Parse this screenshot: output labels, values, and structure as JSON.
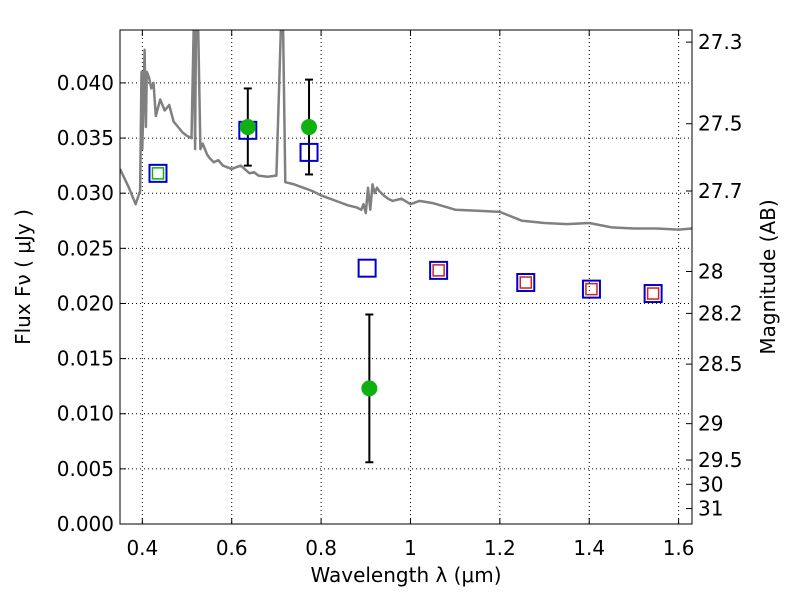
{
  "chart_data": {
    "type": "scatter",
    "title": "",
    "xlabel": "Wavelength  λ (μm)",
    "ylabel": "Flux  Fν  ( μJy )",
    "y2label": "Magnitude (AB)",
    "xlim": [
      0.35,
      1.63
    ],
    "ylim": [
      0.0,
      0.0448
    ],
    "grid": true,
    "x_ticks": [
      0.4,
      0.6,
      0.8,
      1.0,
      1.2,
      1.4,
      1.6
    ],
    "x_tick_labels": [
      "0.4",
      "0.6",
      "0.8",
      "1",
      "1.2",
      "1.4",
      "1.6"
    ],
    "y_ticks": [
      0.0,
      0.005,
      0.01,
      0.015,
      0.02,
      0.025,
      0.03,
      0.035,
      0.04
    ],
    "y_tick_labels": [
      "0.000",
      "0.005",
      "0.010",
      "0.015",
      "0.020",
      "0.025",
      "0.030",
      "0.035",
      "0.040"
    ],
    "y2_ticks": [
      {
        "label": "27.3",
        "flux": 0.0437
      },
      {
        "label": "27.5",
        "flux": 0.0363
      },
      {
        "label": "27.7",
        "flux": 0.0302
      },
      {
        "label": "28",
        "flux": 0.0229
      },
      {
        "label": "28.2",
        "flux": 0.0191
      },
      {
        "label": "28.5",
        "flux": 0.0145
      },
      {
        "label": "29",
        "flux": 0.0091
      },
      {
        "label": "29.5",
        "flux": 0.0058
      },
      {
        "label": "30",
        "flux": 0.0036
      },
      {
        "label": "31",
        "flux": 0.0014
      }
    ],
    "series": [
      {
        "kind": "model-spectrum",
        "color": "#808080",
        "x": [
          0.35,
          0.37,
          0.385,
          0.395,
          0.398,
          0.4,
          0.405,
          0.408,
          0.41,
          0.415,
          0.42,
          0.425,
          0.43,
          0.44,
          0.45,
          0.46,
          0.47,
          0.48,
          0.49,
          0.5,
          0.51,
          0.515,
          0.518,
          0.52,
          0.525,
          0.53,
          0.535,
          0.54,
          0.545,
          0.55,
          0.56,
          0.57,
          0.58,
          0.6,
          0.62,
          0.64,
          0.65,
          0.66,
          0.68,
          0.7,
          0.71,
          0.715,
          0.72,
          0.74,
          0.76,
          0.78,
          0.8,
          0.82,
          0.84,
          0.86,
          0.88,
          0.89,
          0.895,
          0.9,
          0.905,
          0.91,
          0.915,
          0.92,
          0.925,
          0.93,
          0.94,
          0.95,
          0.96,
          0.98,
          1.0,
          1.02,
          1.05,
          1.1,
          1.15,
          1.2,
          1.25,
          1.3,
          1.35,
          1.4,
          1.45,
          1.5,
          1.55,
          1.6,
          1.63
        ],
        "y": [
          0.0322,
          0.0305,
          0.029,
          0.0302,
          0.041,
          0.034,
          0.043,
          0.036,
          0.041,
          0.0405,
          0.0395,
          0.04,
          0.037,
          0.0385,
          0.0375,
          0.038,
          0.0365,
          0.036,
          0.0355,
          0.0352,
          0.035,
          0.045,
          0.034,
          0.045,
          0.045,
          0.034,
          0.0345,
          0.034,
          0.0335,
          0.0332,
          0.0328,
          0.033,
          0.0325,
          0.0322,
          0.0325,
          0.0318,
          0.0319,
          0.0316,
          0.0315,
          0.0316,
          0.045,
          0.045,
          0.031,
          0.0308,
          0.0305,
          0.0302,
          0.0298,
          0.0295,
          0.0292,
          0.0289,
          0.0287,
          0.0285,
          0.029,
          0.0282,
          0.0305,
          0.0285,
          0.0308,
          0.03,
          0.0305,
          0.0302,
          0.0298,
          0.0295,
          0.0293,
          0.0295,
          0.029,
          0.0293,
          0.0291,
          0.0285,
          0.0284,
          0.0283,
          0.0275,
          0.0273,
          0.0272,
          0.0273,
          0.0269,
          0.0268,
          0.0268,
          0.0267,
          0.0268
        ]
      },
      {
        "kind": "observed",
        "color": "#11b011",
        "x": [
          0.636,
          0.773,
          0.908
        ],
        "y": [
          0.036,
          0.036,
          0.0123
        ],
        "yerr": [
          0.0035,
          0.0043,
          0.0067
        ]
      },
      {
        "kind": "model-photometry",
        "color": "#0000cc",
        "x": [
          0.435,
          0.636,
          0.773,
          0.903,
          1.063,
          1.258,
          1.405,
          1.543
        ],
        "y": [
          0.0318,
          0.0357,
          0.0337,
          0.0232,
          0.023,
          0.0219,
          0.0213,
          0.0209
        ]
      },
      {
        "kind": "inner-marker",
        "color": "#cc2222",
        "x": [
          1.063,
          1.258,
          1.405,
          1.543
        ],
        "y": [
          0.023,
          0.0219,
          0.0213,
          0.0209
        ]
      },
      {
        "kind": "inner-marker",
        "color": "#11b011",
        "x": [
          0.435
        ],
        "y": [
          0.0318
        ]
      }
    ]
  }
}
